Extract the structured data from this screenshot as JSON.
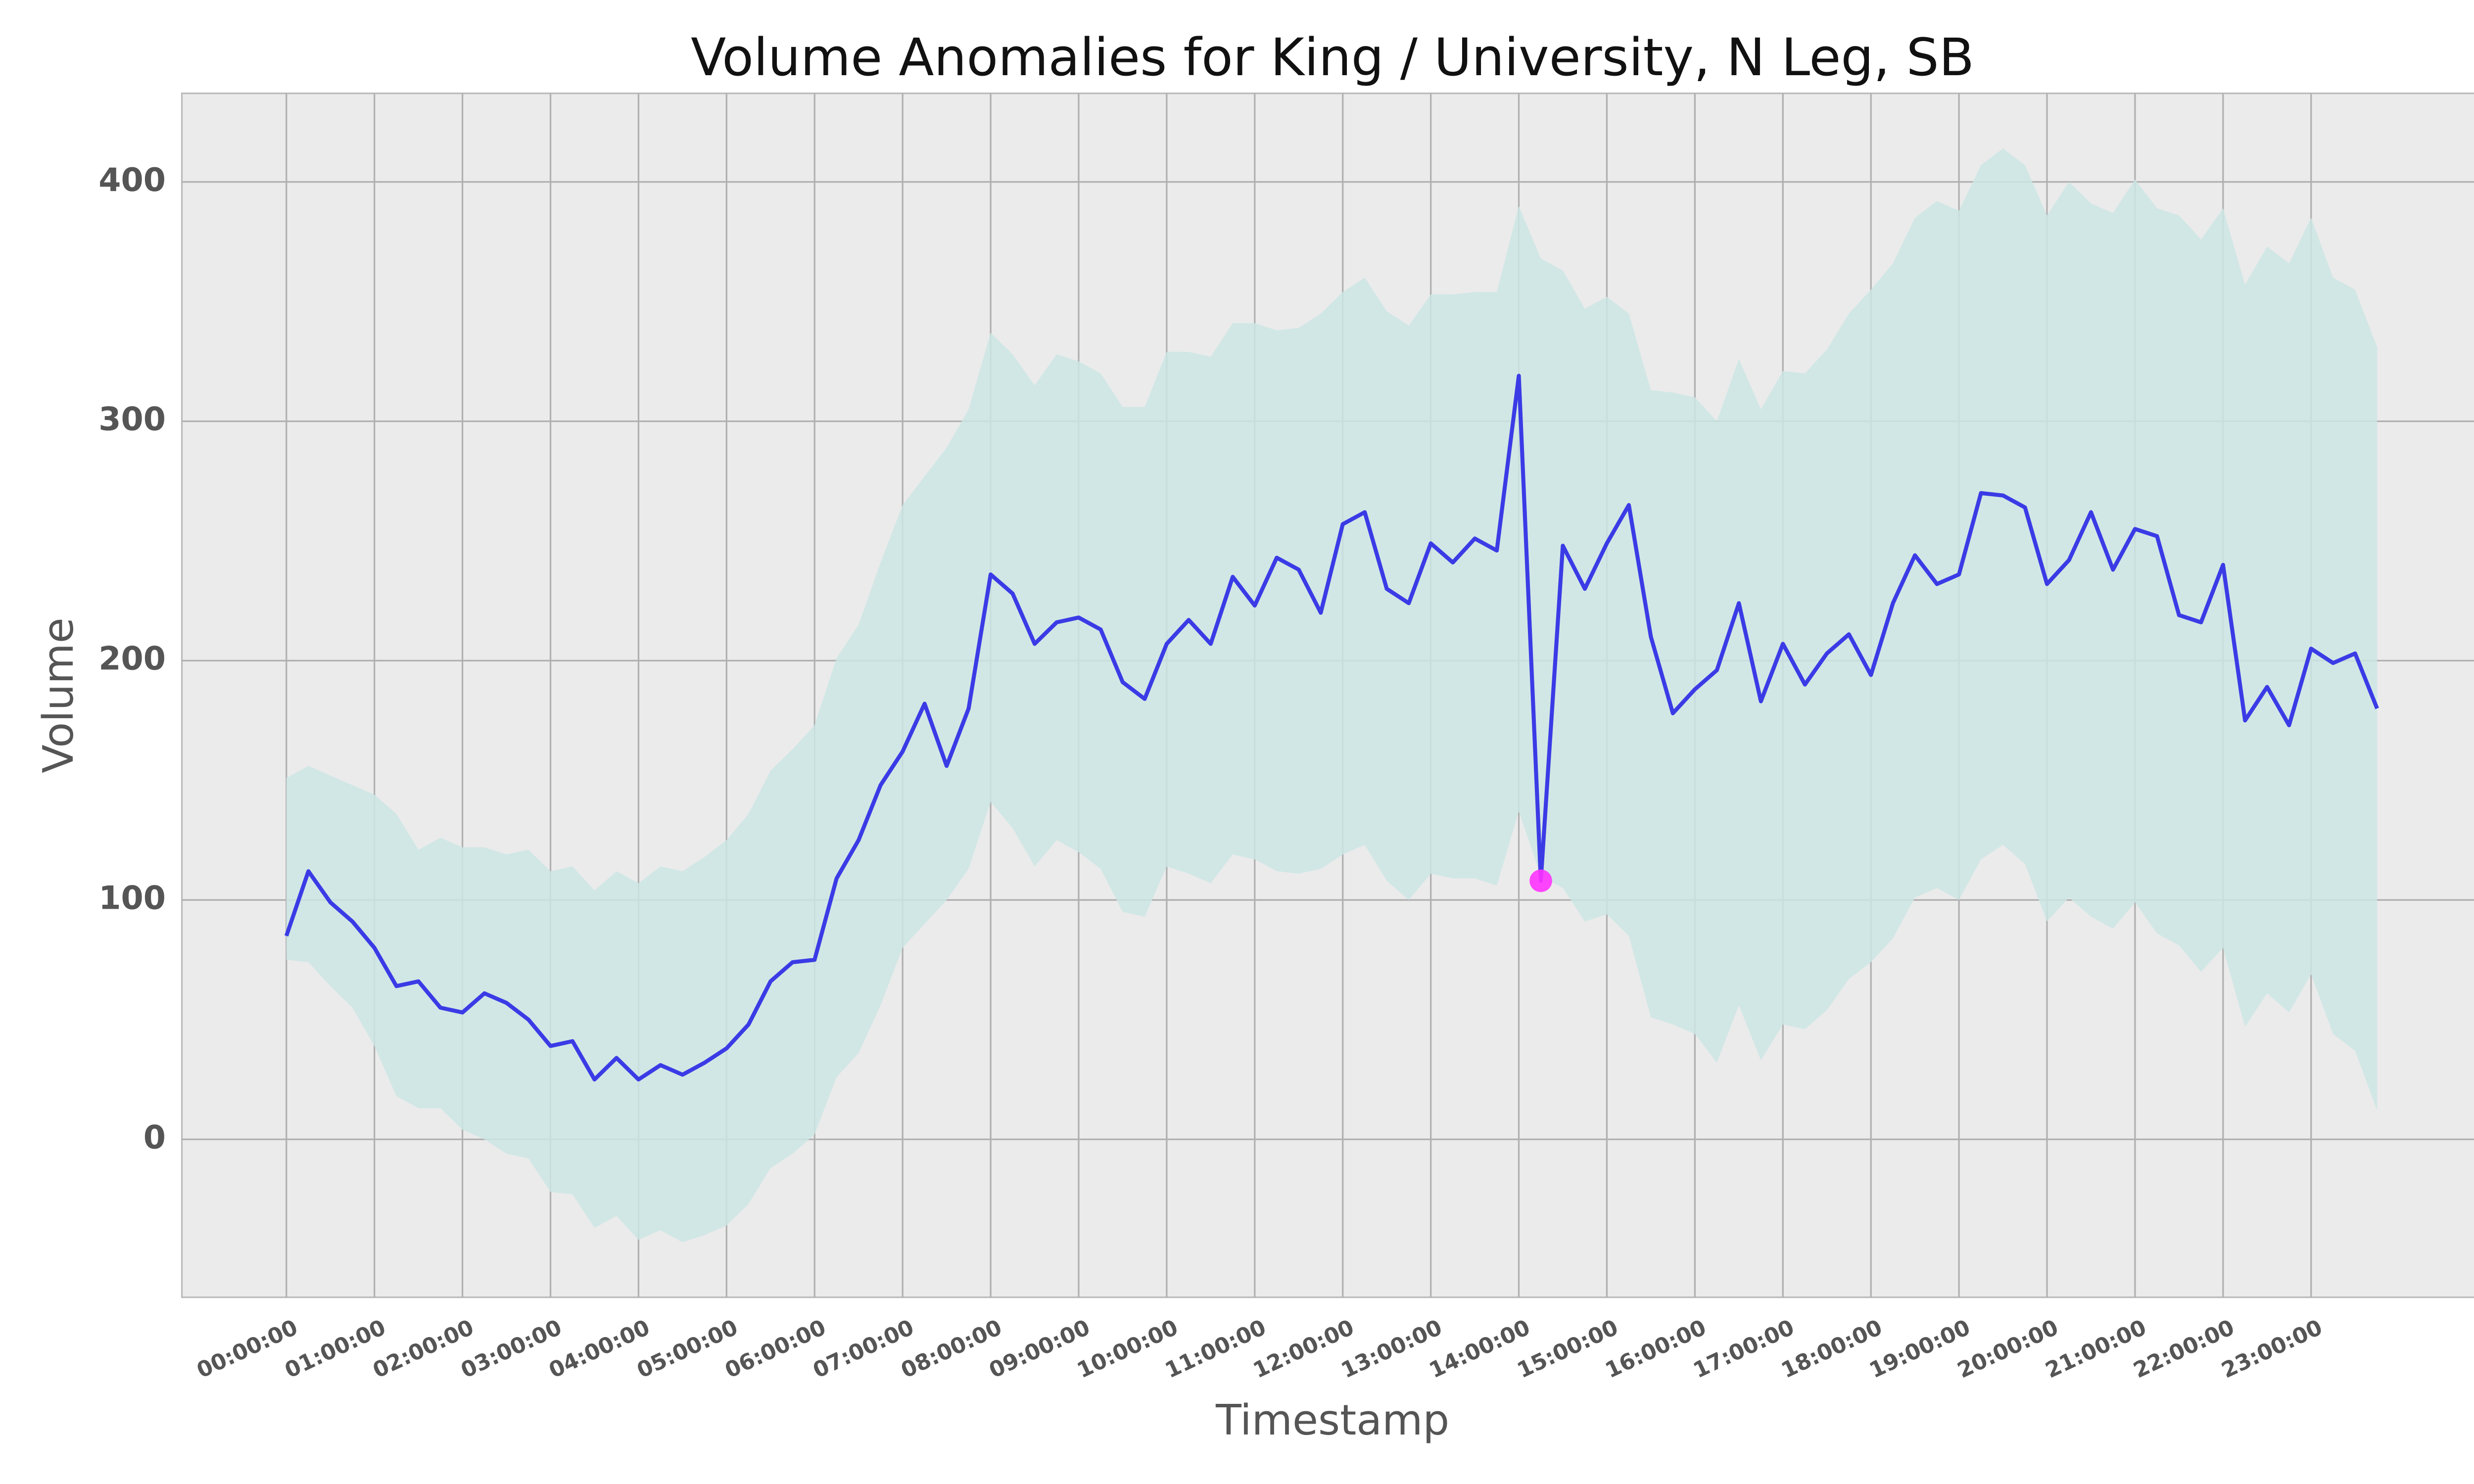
{
  "chart_data": {
    "type": "line",
    "title": "Volume Anomalies for King / University, N Leg, SB",
    "x_label": "Timestamp",
    "y_label": "Volume",
    "x": [
      "00:00:00",
      "00:15:00",
      "00:30:00",
      "00:45:00",
      "01:00:00",
      "01:15:00",
      "01:30:00",
      "01:45:00",
      "02:00:00",
      "02:15:00",
      "02:30:00",
      "02:45:00",
      "03:00:00",
      "03:15:00",
      "03:30:00",
      "03:45:00",
      "04:00:00",
      "04:15:00",
      "04:30:00",
      "04:45:00",
      "05:00:00",
      "05:15:00",
      "05:30:00",
      "05:45:00",
      "06:00:00",
      "06:15:00",
      "06:30:00",
      "06:45:00",
      "07:00:00",
      "07:15:00",
      "07:30:00",
      "07:45:00",
      "08:00:00",
      "08:15:00",
      "08:30:00",
      "08:45:00",
      "09:00:00",
      "09:15:00",
      "09:30:00",
      "09:45:00",
      "10:00:00",
      "10:15:00",
      "10:30:00",
      "10:45:00",
      "11:00:00",
      "11:15:00",
      "11:30:00",
      "11:45:00",
      "12:00:00",
      "12:15:00",
      "12:30:00",
      "12:45:00",
      "13:00:00",
      "13:15:00",
      "13:30:00",
      "13:45:00",
      "14:00:00",
      "14:15:00",
      "14:30:00",
      "14:45:00",
      "15:00:00",
      "15:15:00",
      "15:30:00",
      "15:45:00",
      "16:00:00",
      "16:15:00",
      "16:30:00",
      "16:45:00",
      "17:00:00",
      "17:15:00",
      "17:30:00",
      "17:45:00",
      "18:00:00",
      "18:15:00",
      "18:30:00",
      "18:45:00",
      "19:00:00",
      "19:15:00",
      "19:30:00",
      "19:45:00",
      "20:00:00",
      "20:15:00",
      "20:30:00",
      "20:45:00",
      "21:00:00",
      "21:15:00",
      "21:30:00",
      "21:45:00",
      "22:00:00",
      "22:15:00",
      "22:30:00",
      "22:45:00",
      "23:00:00",
      "23:15:00",
      "23:30:00",
      "23:45:00"
    ],
    "series": [
      {
        "color": "#3b3be6",
        "values": [
          85,
          112,
          99,
          91,
          80,
          64,
          66,
          55,
          53,
          61,
          57,
          50,
          39,
          41,
          25,
          34,
          25,
          31,
          27,
          32,
          38,
          48,
          66,
          74,
          75,
          109,
          125,
          148,
          162,
          182,
          156,
          180,
          236,
          228,
          207,
          216,
          218,
          213,
          191,
          184,
          207,
          217,
          207,
          235,
          223,
          243,
          238,
          220,
          257,
          262,
          230,
          224,
          249,
          241,
          251,
          246,
          319,
          108,
          248,
          230,
          249,
          265,
          210,
          178,
          188,
          196,
          224,
          183,
          207,
          190,
          203,
          211,
          194,
          224,
          244,
          232,
          236,
          270,
          269,
          264,
          232,
          242,
          262,
          238,
          255,
          252,
          219,
          216,
          240,
          175,
          189,
          173,
          205,
          199,
          203,
          180
        ]
      }
    ],
    "band": {
      "color": "#cce6e4",
      "upper": [
        151,
        156,
        152,
        148,
        144,
        136,
        121,
        126,
        122,
        122,
        119,
        121,
        112,
        114,
        104,
        112,
        107,
        114,
        112,
        118,
        125,
        136,
        154,
        163,
        173,
        201,
        215,
        241,
        265,
        277,
        289,
        305,
        337,
        328,
        315,
        328,
        325,
        320,
        306,
        306,
        329,
        329,
        327,
        341,
        341,
        338,
        339,
        345,
        354,
        360,
        346,
        340,
        353,
        353,
        354,
        354,
        390,
        368,
        363,
        347,
        352,
        345,
        313,
        312,
        310,
        300,
        326,
        305,
        321,
        320,
        330,
        345,
        355,
        366,
        385,
        392,
        388,
        407,
        414,
        407,
        386,
        400,
        391,
        387,
        401,
        389,
        386,
        376,
        389,
        357,
        373,
        366,
        385,
        360,
        355,
        331
      ],
      "lower": [
        75,
        74,
        64,
        55,
        39,
        18,
        13,
        13,
        4,
        0,
        -6,
        -8,
        -22,
        -23,
        -37,
        -32,
        -42,
        -38,
        -43,
        -40,
        -36,
        -27,
        -12,
        -6,
        2,
        26,
        36,
        56,
        80,
        90,
        100,
        113,
        141,
        130,
        114,
        125,
        120,
        113,
        95,
        93,
        114,
        111,
        107,
        119,
        117,
        112,
        111,
        113,
        119,
        123,
        108,
        100,
        111,
        109,
        109,
        106,
        137,
        110,
        105,
        91,
        94,
        85,
        51,
        48,
        44,
        32,
        56,
        33,
        48,
        46,
        54,
        67,
        74,
        84,
        101,
        105,
        100,
        117,
        123,
        115,
        91,
        101,
        93,
        88,
        99,
        86,
        81,
        70,
        80,
        47,
        61,
        53,
        69,
        44,
        37,
        12
      ]
    },
    "anomalies": {
      "color": "#ff33ff",
      "values": [
        null,
        null,
        null,
        null,
        null,
        null,
        null,
        null,
        null,
        null,
        null,
        null,
        null,
        null,
        null,
        null,
        null,
        null,
        null,
        null,
        null,
        null,
        null,
        null,
        null,
        null,
        null,
        null,
        null,
        null,
        null,
        null,
        null,
        null,
        null,
        null,
        null,
        null,
        null,
        null,
        null,
        null,
        null,
        null,
        null,
        null,
        null,
        null,
        null,
        null,
        null,
        null,
        null,
        null,
        null,
        null,
        null,
        108,
        null,
        null,
        null,
        null,
        null,
        null,
        null,
        null,
        null,
        null,
        null,
        null,
        null,
        null,
        null,
        null,
        null,
        null,
        null,
        null,
        null,
        null,
        null,
        null,
        null,
        null,
        null,
        null,
        null,
        null,
        null,
        null,
        null,
        null,
        null,
        null,
        null,
        null
      ]
    },
    "ylim": [
      -66,
      437
    ],
    "yticks": [
      0,
      100,
      200,
      300,
      400
    ],
    "grid": true,
    "background": "#ebebeb"
  }
}
